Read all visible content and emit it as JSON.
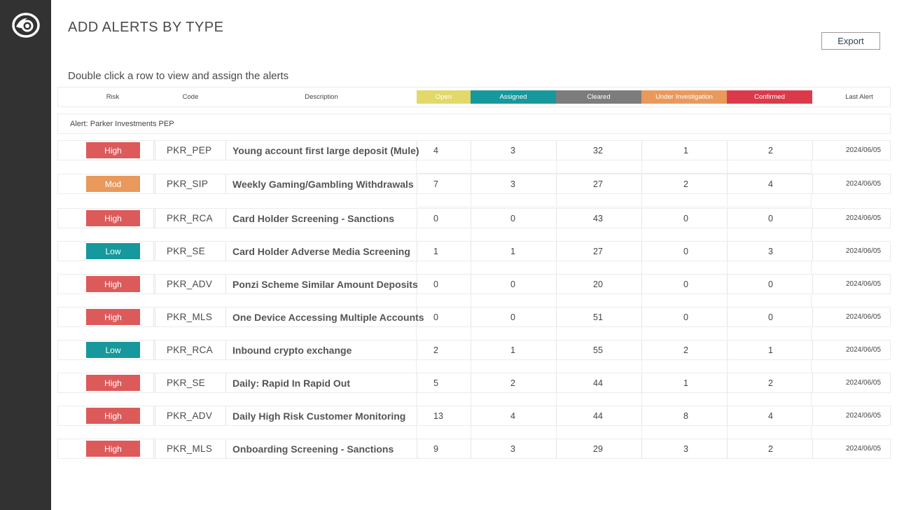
{
  "colors": {
    "sidebar": "#323232",
    "open": "#e3d86a",
    "assigned": "#16989c",
    "cleared": "#7c7c7c",
    "under_investigation": "#e9995c",
    "confirmed": "#dc3a4b",
    "risk_high": "#dd5a5b",
    "risk_mod": "#e9995c",
    "risk_low": "#16989c"
  },
  "sidebar": {
    "logo_icon": "eye-logo-icon"
  },
  "page": {
    "title": "ADD ALERTS BY TYPE",
    "export_label": "Export",
    "subtitle": "Double click a row to view and assign the alerts"
  },
  "table": {
    "headers": {
      "risk": "Risk",
      "code": "Code",
      "description": "Description",
      "open": "Open",
      "assigned": "Assigned",
      "cleared": "Cleared",
      "under_investigation": "Under Investigation",
      "confirmed": "Confirmed",
      "last_alert": "Last Alert"
    },
    "group_label": "Alert: Parker Investments PEP",
    "rows": [
      {
        "risk": "High",
        "risk_level": "high",
        "code": "PKR_PEP",
        "description": "Young account first large deposit (Mule)",
        "open": "4",
        "assigned": "3",
        "cleared": "32",
        "under_investigation": "1",
        "confirmed": "2",
        "last_alert": "2024/06/05"
      },
      {
        "risk": "Mod",
        "risk_level": "mod",
        "code": "PKR_SIP",
        "description": "Weekly Gaming/Gambling Withdrawals",
        "open": "7",
        "assigned": "3",
        "cleared": "27",
        "under_investigation": "2",
        "confirmed": "4",
        "last_alert": "2024/06/05"
      },
      {
        "risk": "High",
        "risk_level": "high",
        "code": "PKR_RCA",
        "description": "Card Holder Screening - Sanctions",
        "open": "0",
        "assigned": "0",
        "cleared": "43",
        "under_investigation": "0",
        "confirmed": "0",
        "last_alert": "2024/06/05"
      },
      {
        "risk": "Low",
        "risk_level": "low",
        "code": "PKR_SE",
        "description": "Card Holder Adverse Media Screening",
        "open": "1",
        "assigned": "1",
        "cleared": "27",
        "under_investigation": "0",
        "confirmed": "3",
        "last_alert": "2024/06/05"
      },
      {
        "risk": "High",
        "risk_level": "high",
        "code": "PKR_ADV",
        "description": "Ponzi Scheme Similar Amount Deposits",
        "open": "0",
        "assigned": "0",
        "cleared": "20",
        "under_investigation": "0",
        "confirmed": "0",
        "last_alert": "2024/06/05"
      },
      {
        "risk": "High",
        "risk_level": "high",
        "code": "PKR_MLS",
        "description": "One Device Accessing Multiple Accounts",
        "open": "0",
        "assigned": "0",
        "cleared": "51",
        "under_investigation": "0",
        "confirmed": "0",
        "last_alert": "2024/06/05"
      },
      {
        "risk": "Low",
        "risk_level": "low",
        "code": "PKR_RCA",
        "description": "Inbound crypto exchange",
        "open": "2",
        "assigned": "1",
        "cleared": "55",
        "under_investigation": "2",
        "confirmed": "1",
        "last_alert": "2024/06/05"
      },
      {
        "risk": "High",
        "risk_level": "high",
        "code": "PKR_SE",
        "description": "Daily: Rapid In Rapid Out",
        "open": "5",
        "assigned": "2",
        "cleared": "44",
        "under_investigation": "1",
        "confirmed": "2",
        "last_alert": "2024/06/05"
      },
      {
        "risk": "High",
        "risk_level": "high",
        "code": "PKR_ADV",
        "description": "Daily High Risk Customer Monitoring",
        "open": "13",
        "assigned": "4",
        "cleared": "44",
        "under_investigation": "8",
        "confirmed": "4",
        "last_alert": "2024/06/05"
      },
      {
        "risk": "High",
        "risk_level": "high",
        "code": "PKR_MLS",
        "description": "Onboarding Screening - Sanctions",
        "open": "9",
        "assigned": "3",
        "cleared": "29",
        "under_investigation": "3",
        "confirmed": "2",
        "last_alert": "2024/06/05"
      }
    ]
  }
}
